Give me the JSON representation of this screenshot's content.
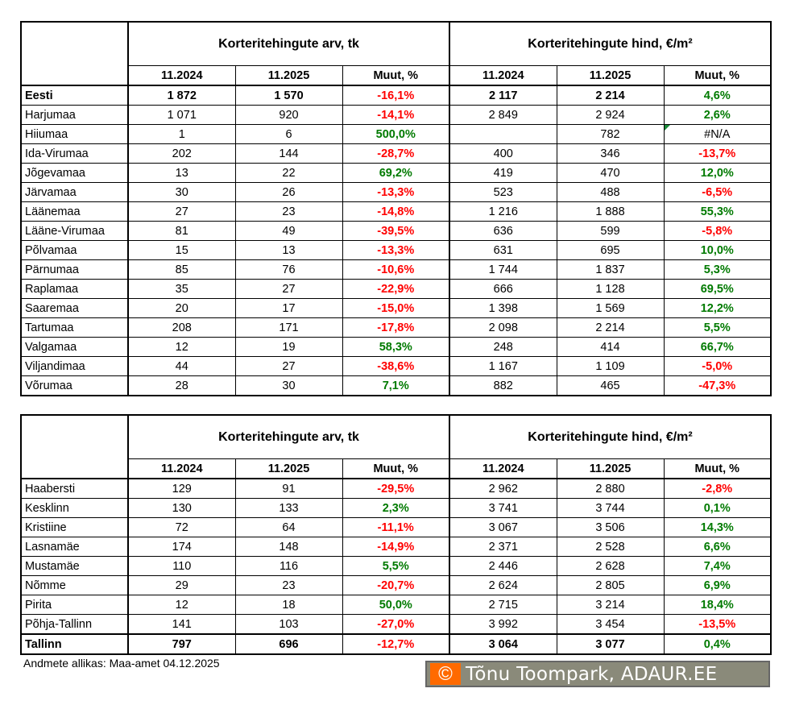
{
  "colors": {
    "negative": "#ff0000",
    "positive": "#007a00"
  },
  "headers": {
    "count_group": "Korteritehingute arv, tk",
    "price_group": "Korteritehingute hind, €/m²",
    "cols": [
      "11.2024",
      "11.2025",
      "Muut, %",
      "11.2024",
      "11.2025",
      "Muut, %"
    ]
  },
  "counties": [
    {
      "name": "Eesti",
      "c24": "1 872",
      "c25": "1 570",
      "cch": "-16,1%",
      "p24": "2 117",
      "p25": "2 214",
      "pch": "4,6%",
      "bold": true
    },
    {
      "name": "Harjumaa",
      "c24": "1 071",
      "c25": "920",
      "cch": "-14,1%",
      "p24": "2 849",
      "p25": "2 924",
      "pch": "2,6%"
    },
    {
      "name": "Hiiumaa",
      "c24": "1",
      "c25": "6",
      "cch": "500,0%",
      "p24": "",
      "p25": "782",
      "pch": "#N/A"
    },
    {
      "name": "Ida-Virumaa",
      "c24": "202",
      "c25": "144",
      "cch": "-28,7%",
      "p24": "400",
      "p25": "346",
      "pch": "-13,7%"
    },
    {
      "name": "Jõgevamaa",
      "c24": "13",
      "c25": "22",
      "cch": "69,2%",
      "p24": "419",
      "p25": "470",
      "pch": "12,0%"
    },
    {
      "name": "Järvamaa",
      "c24": "30",
      "c25": "26",
      "cch": "-13,3%",
      "p24": "523",
      "p25": "488",
      "pch": "-6,5%"
    },
    {
      "name": "Läänemaa",
      "c24": "27",
      "c25": "23",
      "cch": "-14,8%",
      "p24": "1 216",
      "p25": "1 888",
      "pch": "55,3%"
    },
    {
      "name": "Lääne-Virumaa",
      "c24": "81",
      "c25": "49",
      "cch": "-39,5%",
      "p24": "636",
      "p25": "599",
      "pch": "-5,8%"
    },
    {
      "name": "Põlvamaa",
      "c24": "15",
      "c25": "13",
      "cch": "-13,3%",
      "p24": "631",
      "p25": "695",
      "pch": "10,0%"
    },
    {
      "name": "Pärnumaa",
      "c24": "85",
      "c25": "76",
      "cch": "-10,6%",
      "p24": "1 744",
      "p25": "1 837",
      "pch": "5,3%"
    },
    {
      "name": "Raplamaa",
      "c24": "35",
      "c25": "27",
      "cch": "-22,9%",
      "p24": "666",
      "p25": "1 128",
      "pch": "69,5%"
    },
    {
      "name": "Saaremaa",
      "c24": "20",
      "c25": "17",
      "cch": "-15,0%",
      "p24": "1 398",
      "p25": "1 569",
      "pch": "12,2%"
    },
    {
      "name": "Tartumaa",
      "c24": "208",
      "c25": "171",
      "cch": "-17,8%",
      "p24": "2 098",
      "p25": "2 214",
      "pch": "5,5%"
    },
    {
      "name": "Valgamaa",
      "c24": "12",
      "c25": "19",
      "cch": "58,3%",
      "p24": "248",
      "p25": "414",
      "pch": "66,7%"
    },
    {
      "name": "Viljandimaa",
      "c24": "44",
      "c25": "27",
      "cch": "-38,6%",
      "p24": "1 167",
      "p25": "1 109",
      "pch": "-5,0%"
    },
    {
      "name": "Võrumaa",
      "c24": "28",
      "c25": "30",
      "cch": "7,1%",
      "p24": "882",
      "p25": "465",
      "pch": "-47,3%"
    }
  ],
  "districts": [
    {
      "name": "Haabersti",
      "c24": "129",
      "c25": "91",
      "cch": "-29,5%",
      "p24": "2 962",
      "p25": "2 880",
      "pch": "-2,8%"
    },
    {
      "name": "Kesklinn",
      "c24": "130",
      "c25": "133",
      "cch": "2,3%",
      "p24": "3 741",
      "p25": "3 744",
      "pch": "0,1%"
    },
    {
      "name": "Kristiine",
      "c24": "72",
      "c25": "64",
      "cch": "-11,1%",
      "p24": "3 067",
      "p25": "3 506",
      "pch": "14,3%"
    },
    {
      "name": "Lasnamäe",
      "c24": "174",
      "c25": "148",
      "cch": "-14,9%",
      "p24": "2 371",
      "p25": "2 528",
      "pch": "6,6%"
    },
    {
      "name": "Mustamäe",
      "c24": "110",
      "c25": "116",
      "cch": "5,5%",
      "p24": "2 446",
      "p25": "2 628",
      "pch": "7,4%"
    },
    {
      "name": "Nõmme",
      "c24": "29",
      "c25": "23",
      "cch": "-20,7%",
      "p24": "2 624",
      "p25": "2 805",
      "pch": "6,9%"
    },
    {
      "name": "Pirita",
      "c24": "12",
      "c25": "18",
      "cch": "50,0%",
      "p24": "2 715",
      "p25": "3 214",
      "pch": "18,4%"
    },
    {
      "name": "Põhja-Tallinn",
      "c24": "141",
      "c25": "103",
      "cch": "-27,0%",
      "p24": "3 992",
      "p25": "3 454",
      "pch": "-13,5%"
    },
    {
      "name": "Tallinn",
      "c24": "797",
      "c25": "696",
      "cch": "-12,7%",
      "p24": "3 064",
      "p25": "3 077",
      "pch": "0,4%",
      "bold": true
    }
  ],
  "footer": {
    "source": "Andmete allikas: Maa-amet 04.12.2025",
    "copyright_symbol": "©",
    "copyright": "Tõnu Toompark, ADAUR.EE"
  }
}
